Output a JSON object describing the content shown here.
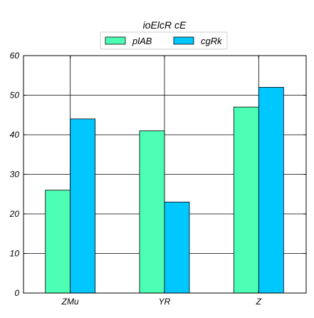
{
  "chart_data": {
    "type": "bar",
    "title": "ioElcR cE",
    "xlabel": "",
    "ylabel": "",
    "categories": [
      "ZMu",
      "YR",
      "Z"
    ],
    "series": [
      {
        "name": "plAB",
        "values": [
          26,
          41,
          47
        ],
        "color": "#4dffb4"
      },
      {
        "name": "cgRk",
        "values": [
          44,
          23,
          52
        ],
        "color": "#00c8ff"
      }
    ],
    "ylim": [
      0,
      60
    ],
    "yticks": [
      0,
      10,
      20,
      30,
      40,
      50,
      60
    ],
    "grid": true,
    "legend_position": "top-center"
  }
}
